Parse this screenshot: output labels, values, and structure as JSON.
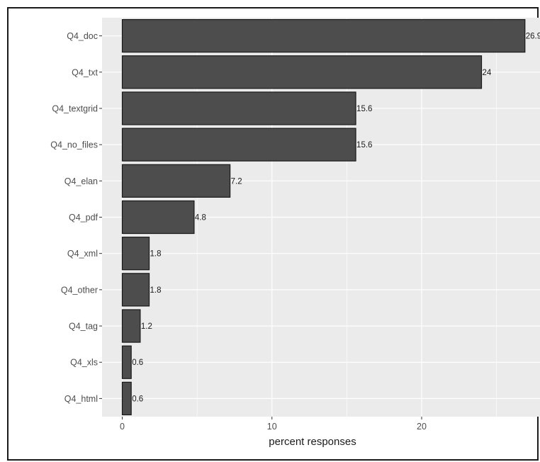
{
  "chart_data": {
    "type": "bar",
    "orientation": "horizontal",
    "categories": [
      "Q4_doc",
      "Q4_txt",
      "Q4_textgrid",
      "Q4_no_files",
      "Q4_elan",
      "Q4_pdf",
      "Q4_xml",
      "Q4_other",
      "Q4_tag",
      "Q4_xls",
      "Q4_html"
    ],
    "values": [
      26.9,
      24,
      15.6,
      15.6,
      7.2,
      4.8,
      1.8,
      1.8,
      1.2,
      0.6,
      0.6
    ],
    "value_labels": [
      "26.9",
      "24",
      "15.6",
      "15.6",
      "7.2",
      "4.8",
      "1.8",
      "1.8",
      "1.2",
      "0.6",
      "0.6"
    ],
    "xlabel": "percent responses",
    "ylabel": "",
    "xlim": [
      -1.35,
      28
    ],
    "x_ticks": [
      0,
      10,
      20
    ],
    "x_tick_labels": [
      "0",
      "10",
      "20"
    ],
    "grid": true,
    "colors": {
      "panel_background": "#ebebeb",
      "grid_line": "#ffffff",
      "bar_fill": "#4d4d4d",
      "bar_outline": "#1a1a1a"
    }
  }
}
